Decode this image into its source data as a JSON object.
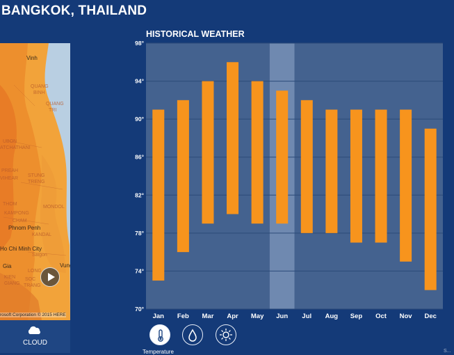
{
  "header": {
    "location": "BANGKOK, THAILAND"
  },
  "map": {
    "labels": [
      "Vinh",
      "QUANG",
      "BINH",
      "QUANG",
      "TRI",
      "UBON",
      "ATCHATHANI",
      "PREAH",
      "VIHEAR",
      "STUNG",
      "TRENG",
      "THOM",
      "KAMPONG",
      "CHAM",
      "MONDOL",
      "Phnom Penh",
      "KANDAL",
      "Ho Chi Minh City",
      "Saigon",
      "Gia",
      "LONG",
      "Vung",
      "KIEN",
      "GIANG",
      "SOC",
      "TRANG"
    ],
    "copyright": "rosoft Corporation © 2015 HERE",
    "play_label": "Play"
  },
  "layer_tab": {
    "label": "CLOUD",
    "icon": "cloud-icon"
  },
  "chart_title": "HISTORICAL WEATHER",
  "chart_data": {
    "type": "bar",
    "title": "HISTORICAL WEATHER",
    "categories": [
      "Jan",
      "Feb",
      "Mar",
      "Apr",
      "May",
      "Jun",
      "Jul",
      "Aug",
      "Sep",
      "Oct",
      "Nov",
      "Dec"
    ],
    "series": [
      {
        "low": [
          73,
          76,
          79,
          80,
          79,
          79,
          78,
          78,
          77,
          77,
          75,
          72
        ],
        "high": [
          91,
          92,
          94,
          96,
          94,
          93,
          92,
          91,
          91,
          91,
          91,
          89
        ]
      }
    ],
    "yticks": [
      "98°",
      "94°",
      "90°",
      "86°",
      "82°",
      "78°",
      "74°",
      "70°"
    ],
    "ylim": [
      70,
      98
    ],
    "highlight_index": 5,
    "grid": true,
    "colors": {
      "bar": "#f7941d",
      "plot_bg": "#44628f",
      "highlight_bg": "#6f89b0",
      "grid": "#2c4b79"
    }
  },
  "metrics": {
    "items": [
      {
        "icon": "thermometer-icon",
        "active": true
      },
      {
        "icon": "water-drop-icon",
        "active": false
      },
      {
        "icon": "sun-icon",
        "active": false
      }
    ],
    "active_label": "Temperature"
  },
  "corner_label": "S..."
}
